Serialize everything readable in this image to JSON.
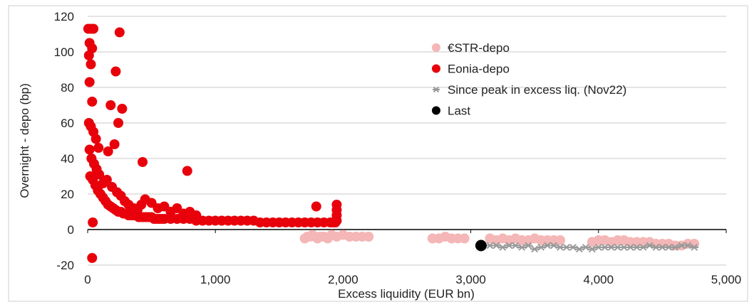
{
  "chart_data": {
    "type": "scatter",
    "title": "",
    "xlabel": "Excess liquidity (EUR bn)",
    "ylabel": "Overnight - depo (bp)",
    "xlim": [
      0,
      5000
    ],
    "ylim": [
      -20,
      120
    ],
    "x_ticks": [
      0,
      1000,
      2000,
      3000,
      4000,
      5000
    ],
    "x_tick_labels": [
      "0",
      "1,000",
      "2,000",
      "3,000",
      "4,000",
      "5,000"
    ],
    "y_ticks": [
      -20,
      0,
      20,
      40,
      60,
      80,
      100,
      120
    ],
    "y_tick_labels": [
      "-20",
      "0",
      "20",
      "40",
      "60",
      "80",
      "100",
      "120"
    ],
    "grid": "horizontal",
    "legend": "top-right",
    "series": [
      {
        "name": "€STR-depo",
        "color": "#f4b6b6",
        "marker": "circle",
        "points": [
          [
            1700,
            -5
          ],
          [
            1720,
            -4
          ],
          [
            1740,
            -4
          ],
          [
            1760,
            -3
          ],
          [
            1780,
            -4
          ],
          [
            1800,
            -5
          ],
          [
            1820,
            -4
          ],
          [
            1850,
            -4
          ],
          [
            1880,
            -5
          ],
          [
            1910,
            -3
          ],
          [
            1950,
            -4
          ],
          [
            2000,
            -3
          ],
          [
            2050,
            -4
          ],
          [
            2100,
            -4
          ],
          [
            2150,
            -4
          ],
          [
            2200,
            -4
          ],
          [
            2700,
            -5
          ],
          [
            2750,
            -5
          ],
          [
            2800,
            -4
          ],
          [
            2850,
            -5
          ],
          [
            2900,
            -5
          ],
          [
            2950,
            -5
          ],
          [
            3150,
            -5
          ],
          [
            3200,
            -6
          ],
          [
            3250,
            -5
          ],
          [
            3300,
            -6
          ],
          [
            3350,
            -5
          ],
          [
            3400,
            -6
          ],
          [
            3450,
            -6
          ],
          [
            3500,
            -5
          ],
          [
            3550,
            -6
          ],
          [
            3600,
            -6
          ],
          [
            3650,
            -6
          ],
          [
            3700,
            -6
          ],
          [
            3950,
            -7
          ],
          [
            4000,
            -6
          ],
          [
            4050,
            -6
          ],
          [
            4100,
            -7
          ],
          [
            4150,
            -6
          ],
          [
            4200,
            -6
          ],
          [
            4250,
            -7
          ],
          [
            4300,
            -7
          ],
          [
            4350,
            -7
          ],
          [
            4400,
            -7
          ],
          [
            4450,
            -8
          ],
          [
            4500,
            -8
          ],
          [
            4550,
            -8
          ],
          [
            4600,
            -9
          ],
          [
            4650,
            -9
          ],
          [
            4700,
            -8
          ],
          [
            4750,
            -8
          ]
        ]
      },
      {
        "name": "Eonia-depo",
        "color": "#e8000b",
        "marker": "circle",
        "points": [
          [
            5,
            113
          ],
          [
            25,
            113
          ],
          [
            45,
            113
          ],
          [
            15,
            105
          ],
          [
            35,
            102
          ],
          [
            10,
            98
          ],
          [
            25,
            93
          ],
          [
            15,
            83
          ],
          [
            35,
            72
          ],
          [
            10,
            60
          ],
          [
            25,
            58
          ],
          [
            45,
            55
          ],
          [
            65,
            51
          ],
          [
            85,
            46
          ],
          [
            15,
            45
          ],
          [
            30,
            40
          ],
          [
            50,
            37
          ],
          [
            70,
            34
          ],
          [
            90,
            31
          ],
          [
            20,
            30
          ],
          [
            40,
            28
          ],
          [
            60,
            25
          ],
          [
            80,
            22
          ],
          [
            100,
            20
          ],
          [
            120,
            18
          ],
          [
            140,
            16
          ],
          [
            160,
            14
          ],
          [
            180,
            13
          ],
          [
            200,
            12
          ],
          [
            220,
            11
          ],
          [
            240,
            10
          ],
          [
            260,
            10
          ],
          [
            280,
            9
          ],
          [
            300,
            9
          ],
          [
            320,
            8
          ],
          [
            340,
            8
          ],
          [
            360,
            8
          ],
          [
            380,
            8
          ],
          [
            400,
            7
          ],
          [
            420,
            7
          ],
          [
            440,
            7
          ],
          [
            460,
            7
          ],
          [
            480,
            7
          ],
          [
            500,
            7
          ],
          [
            520,
            6
          ],
          [
            540,
            6
          ],
          [
            560,
            6
          ],
          [
            580,
            6
          ],
          [
            600,
            6
          ],
          [
            650,
            6
          ],
          [
            700,
            6
          ],
          [
            750,
            6
          ],
          [
            800,
            6
          ],
          [
            850,
            5
          ],
          [
            900,
            5
          ],
          [
            950,
            5
          ],
          [
            1000,
            5
          ],
          [
            1050,
            5
          ],
          [
            1100,
            5
          ],
          [
            1150,
            5
          ],
          [
            1200,
            5
          ],
          [
            1250,
            5
          ],
          [
            1300,
            5
          ],
          [
            1350,
            4
          ],
          [
            1400,
            4
          ],
          [
            1450,
            4
          ],
          [
            1500,
            4
          ],
          [
            1550,
            4
          ],
          [
            1600,
            4
          ],
          [
            1650,
            4
          ],
          [
            1700,
            4
          ],
          [
            1750,
            4
          ],
          [
            1800,
            4
          ],
          [
            1850,
            4
          ],
          [
            1900,
            4
          ],
          [
            1920,
            4
          ],
          [
            1940,
            4
          ],
          [
            1950,
            5
          ],
          [
            1950,
            8
          ],
          [
            1950,
            11
          ],
          [
            1950,
            14
          ],
          [
            1790,
            13
          ],
          [
            250,
            111
          ],
          [
            220,
            89
          ],
          [
            240,
            60
          ],
          [
            270,
            68
          ],
          [
            180,
            70
          ],
          [
            210,
            48
          ],
          [
            160,
            44
          ],
          [
            430,
            38
          ],
          [
            780,
            33
          ],
          [
            40,
            4
          ],
          [
            35,
            -16
          ],
          [
            120,
            26
          ],
          [
            150,
            28
          ],
          [
            190,
            24
          ],
          [
            230,
            21
          ],
          [
            260,
            19
          ],
          [
            290,
            16
          ],
          [
            320,
            14
          ],
          [
            360,
            12
          ],
          [
            390,
            11
          ],
          [
            420,
            14
          ],
          [
            450,
            17
          ],
          [
            500,
            15
          ],
          [
            550,
            12
          ],
          [
            600,
            13
          ],
          [
            650,
            10
          ],
          [
            700,
            12
          ],
          [
            750,
            9
          ],
          [
            800,
            10
          ],
          [
            850,
            8
          ]
        ]
      },
      {
        "name": "Since peak in excess liq. (Nov22)",
        "color": "#999999",
        "marker": "asterisk",
        "points": [
          [
            3150,
            -9
          ],
          [
            3200,
            -9
          ],
          [
            3250,
            -10
          ],
          [
            3300,
            -9
          ],
          [
            3350,
            -9
          ],
          [
            3400,
            -10
          ],
          [
            3450,
            -9
          ],
          [
            3500,
            -11
          ],
          [
            3550,
            -10
          ],
          [
            3600,
            -9
          ],
          [
            3650,
            -9
          ],
          [
            3700,
            -10
          ],
          [
            3750,
            -10
          ],
          [
            3800,
            -10
          ],
          [
            3850,
            -11
          ],
          [
            3900,
            -10
          ],
          [
            3950,
            -11
          ],
          [
            4000,
            -10
          ],
          [
            4050,
            -10
          ],
          [
            4100,
            -10
          ],
          [
            4150,
            -10
          ],
          [
            4200,
            -10
          ],
          [
            4250,
            -10
          ],
          [
            4300,
            -10
          ],
          [
            4350,
            -10
          ],
          [
            4400,
            -9
          ],
          [
            4450,
            -10
          ],
          [
            4500,
            -10
          ],
          [
            4550,
            -10
          ],
          [
            4600,
            -10
          ],
          [
            4650,
            -9
          ],
          [
            4700,
            -9
          ],
          [
            4750,
            -10
          ]
        ]
      },
      {
        "name": "Last",
        "color": "#000000",
        "marker": "circle",
        "points": [
          [
            3080,
            -9
          ]
        ]
      }
    ]
  }
}
